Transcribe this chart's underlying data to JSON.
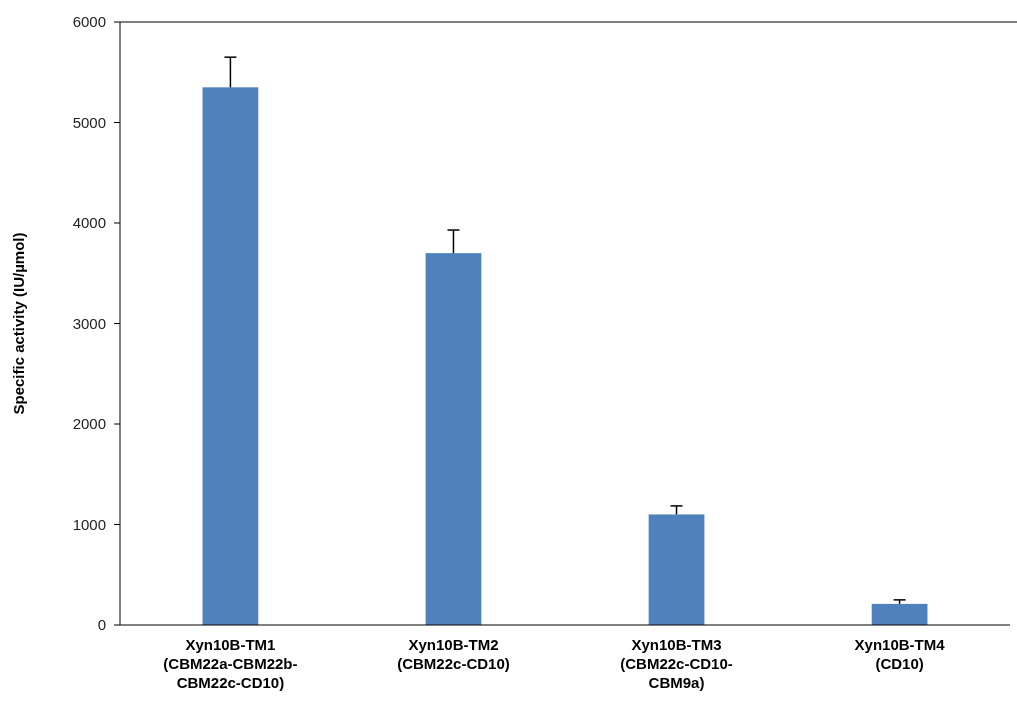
{
  "chart_data": {
    "type": "bar",
    "ylabel": "Specific activity (IU/µmol)",
    "categories": [
      "Xyn10B-TM1 (CBM22a-CBM22b-CBM22c-CD10)",
      "Xyn10B-TM2 (CBM22c-CD10)",
      "Xyn10B-TM3 (CBM22c-CD10-CBM9a)",
      "Xyn10B-TM4 (CD10)"
    ],
    "values": [
      5350,
      3700,
      1100,
      210
    ],
    "errors": [
      [
        5350,
        5650
      ],
      [
        3700,
        3930
      ],
      [
        1100,
        1185
      ],
      [
        210,
        250
      ]
    ],
    "color": "#4f81bd",
    "ylim": [
      0,
      6000
    ],
    "yticks": [
      0,
      1000,
      2000,
      3000,
      4000,
      5000,
      6000
    ],
    "grid": false
  }
}
